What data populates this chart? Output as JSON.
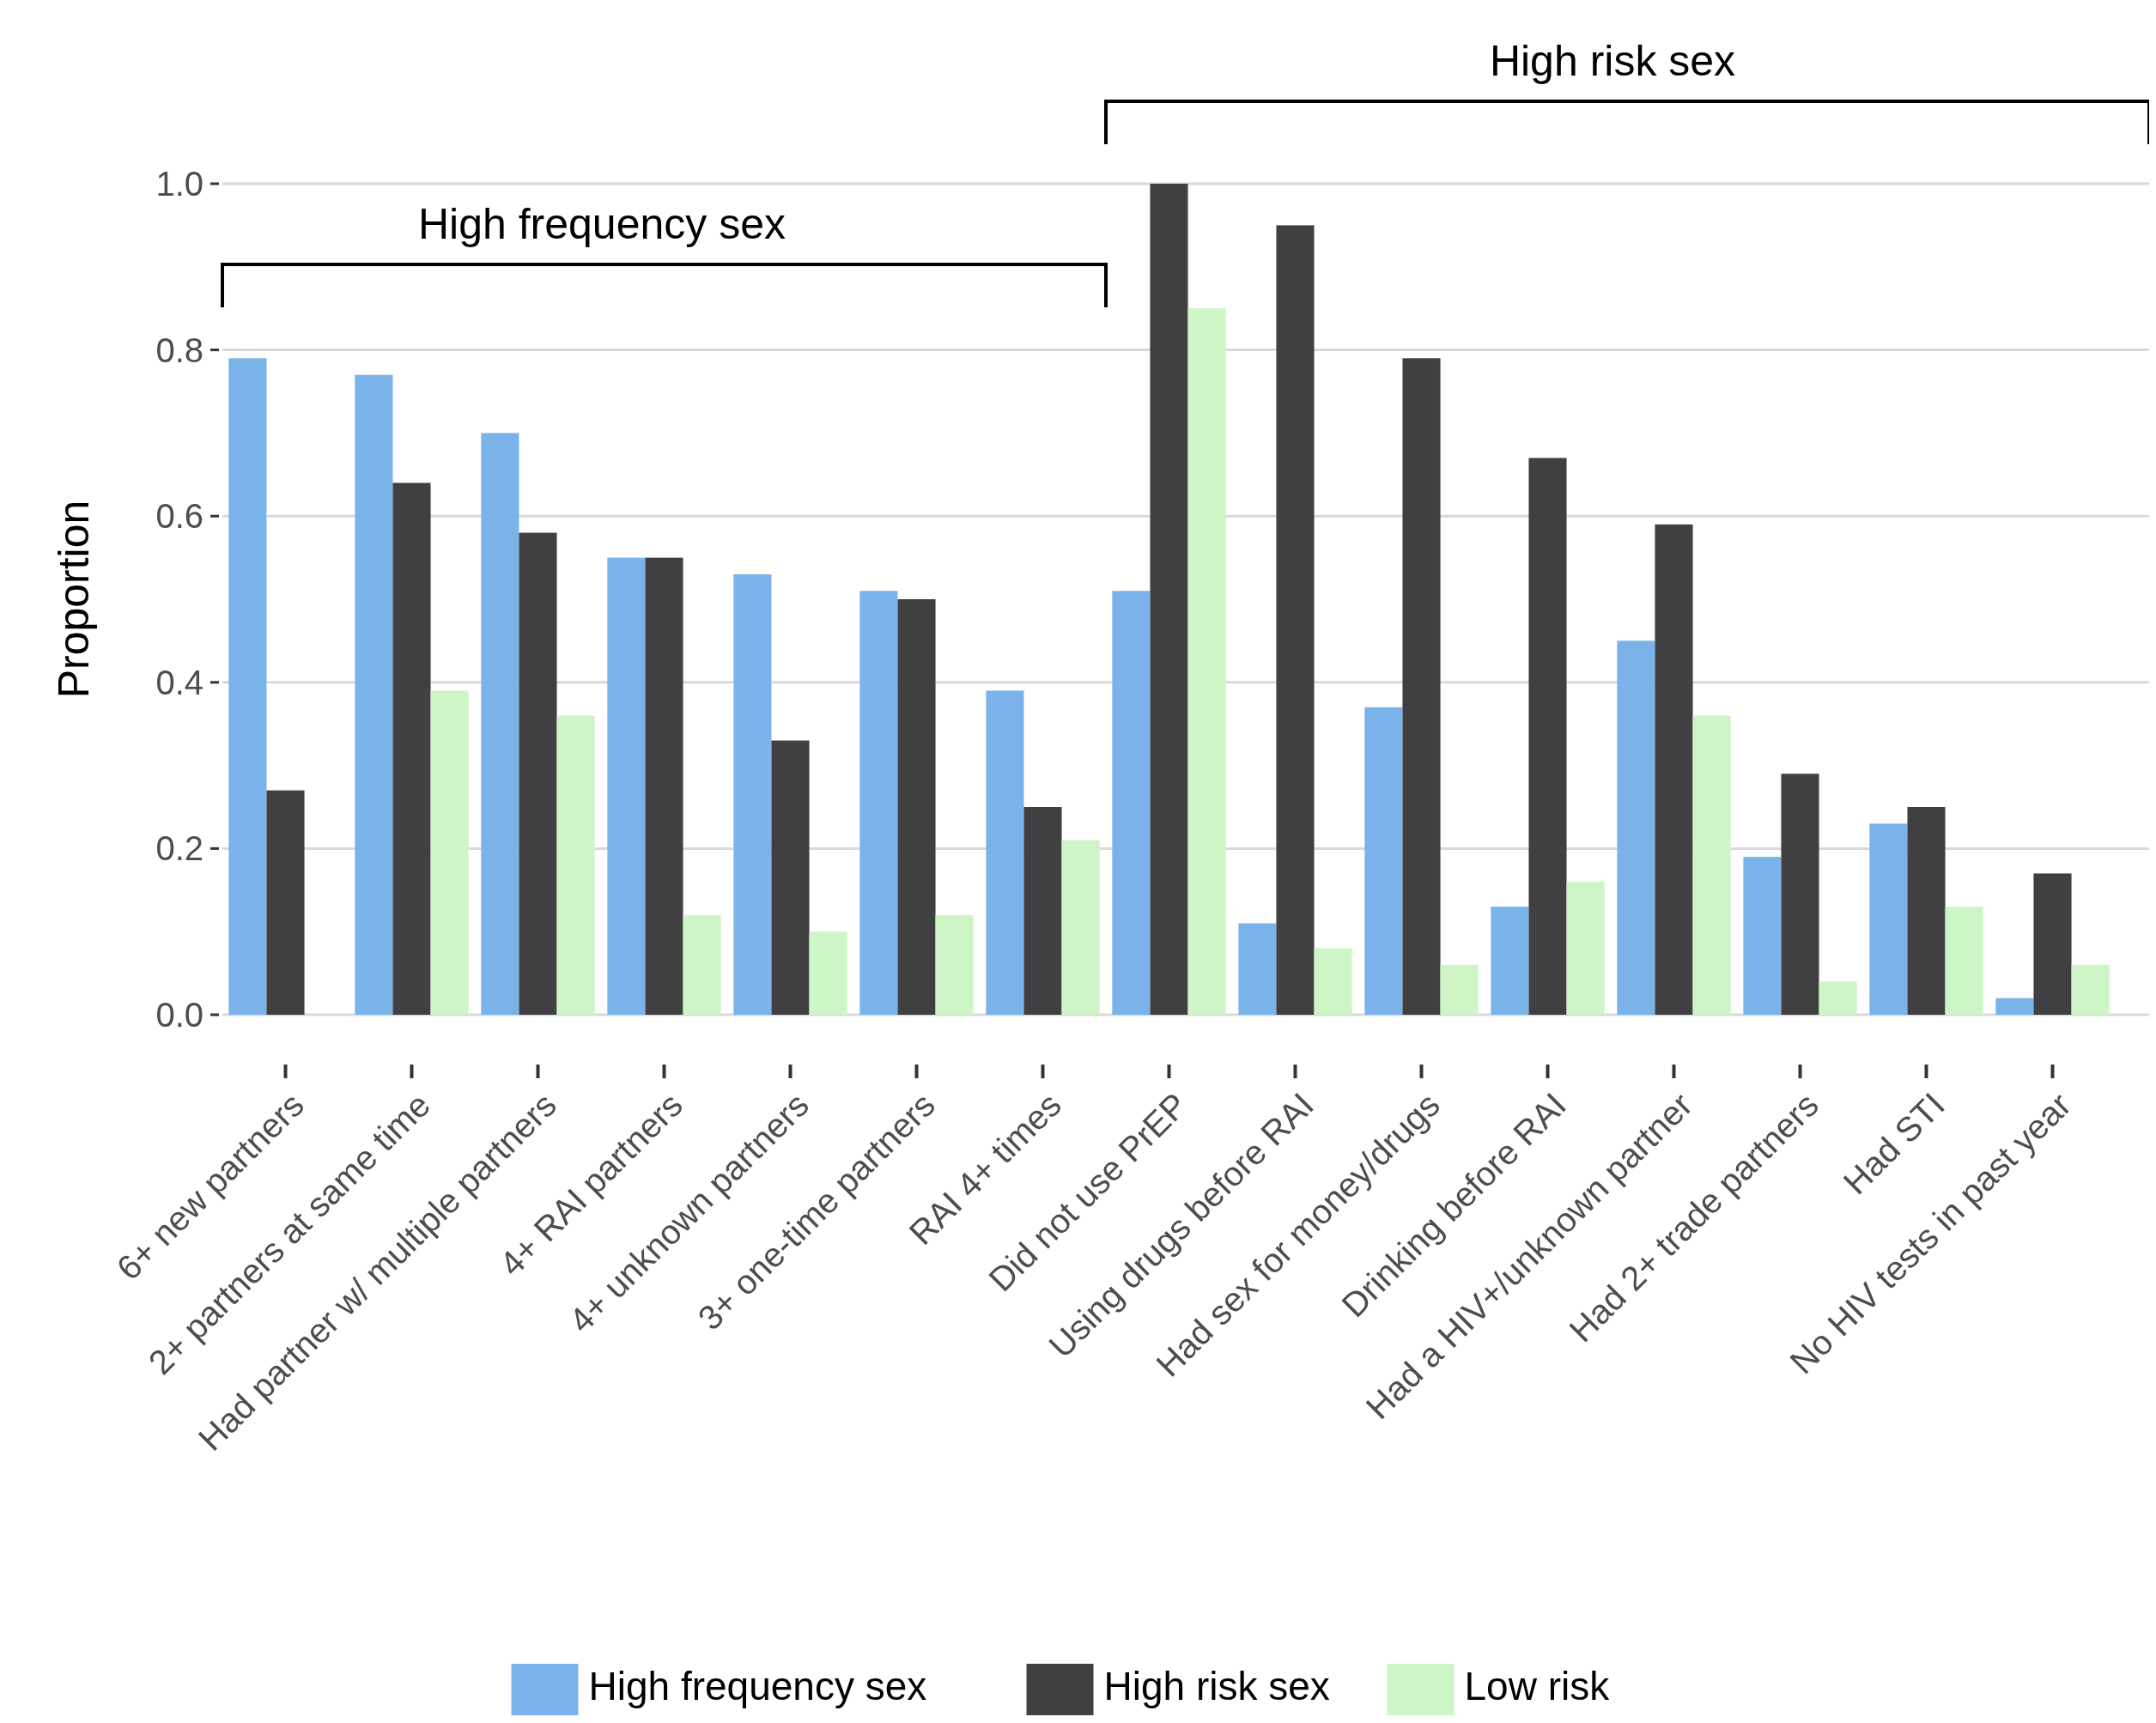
{
  "chart_data": {
    "type": "bar",
    "ylabel": "Proportion",
    "categories": [
      "6+ new partners",
      "2+ partners at same time",
      "Had partner w/ multiple partners",
      "4+ RAI partners",
      "4+ unknown partners",
      "3+ one-time partners",
      "RAI 4+ times",
      "Did not use PrEP",
      "Using drugs before RAI",
      "Had sex for money/drugs",
      "Drinking before RAI",
      "Had a HIV+/unknown partner",
      "Had 2+ trade partners",
      "Had STI",
      "No HIV tests in past year"
    ],
    "series": [
      {
        "name": "High frequency sex",
        "color": "#7ab3ea",
        "values": [
          0.79,
          0.77,
          0.7,
          0.55,
          0.53,
          0.51,
          0.39,
          0.51,
          0.11,
          0.37,
          0.13,
          0.45,
          0.19,
          0.23,
          0.02
        ]
      },
      {
        "name": "High risk sex",
        "color": "#404043",
        "values": [
          0.27,
          0.64,
          0.58,
          0.55,
          0.33,
          0.5,
          0.25,
          1.0,
          0.95,
          0.79,
          0.67,
          0.59,
          0.29,
          0.25,
          0.17
        ]
      },
      {
        "name": "Low risk",
        "color": "#cdf5c6",
        "values": [
          0,
          0.39,
          0.36,
          0.12,
          0.1,
          0.12,
          0.21,
          0.85,
          0.08,
          0.06,
          0.16,
          0.36,
          0.04,
          0.13,
          0.06
        ]
      }
    ],
    "ylim": [
      0,
      1
    ],
    "yticks": [
      {
        "value": 0,
        "label": "0.0"
      },
      0.2,
      0.4,
      0.6,
      0.8,
      {
        "value": 1,
        "label": "1.0"
      }
    ],
    "grid": "y",
    "legend": "bottom",
    "annotations": [
      "High frequency sex",
      "High risk sex"
    ]
  }
}
